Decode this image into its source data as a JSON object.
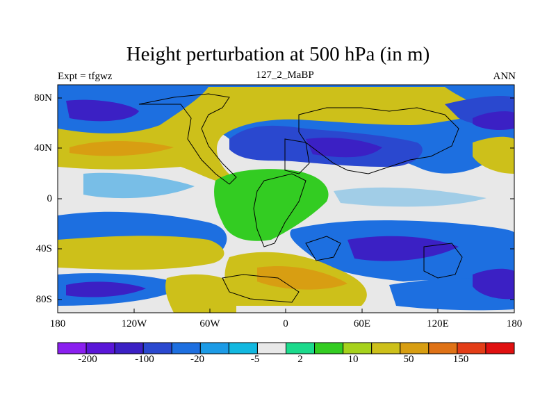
{
  "title": "Height perturbation at 500 hPa (in m)",
  "experiment": "Expt = tfgwz",
  "case_name": "127_2_MaBP",
  "season": "ANN",
  "y_axis_labels": [
    "80N",
    "40N",
    "0",
    "40S",
    "80S"
  ],
  "x_axis_labels": [
    "180",
    "120W",
    "60W",
    "0",
    "60E",
    "120E",
    "180"
  ],
  "colorbar": {
    "labels": [
      "-200",
      "-100",
      "-20",
      "-5",
      "2",
      "10",
      "50",
      "150"
    ],
    "colors": [
      "#8a1fef",
      "#5a16d8",
      "#3b20c4",
      "#2a48cf",
      "#1d6fe0",
      "#1c9be6",
      "#12b8e0",
      "#e8e8e8",
      "#1cda8c",
      "#33cc22",
      "#a6d21c",
      "#cdc01a",
      "#d89e12",
      "#df7216",
      "#e33d17",
      "#e01010"
    ]
  },
  "colors": {
    "ocean_blue": "#1d6fe0",
    "deep_blue": "#3b20c4",
    "neutral": "#e8e8e8",
    "yellow": "#cdc01a",
    "orange": "#d89e12",
    "green": "#33cc22"
  }
}
